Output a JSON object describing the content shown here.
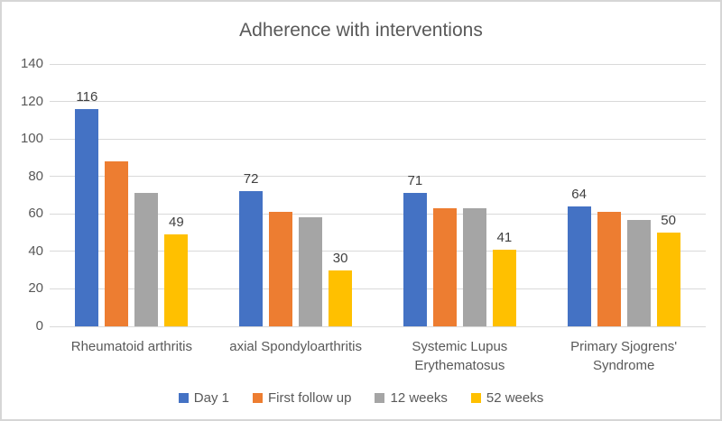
{
  "chart_data": {
    "type": "bar",
    "title": "Adherence with interventions",
    "categories": [
      "Rheumatoid arthritis",
      "axial Spondyloarthritis",
      "Systemic Lupus Erythematosus",
      "Primary Sjogrens' Syndrome"
    ],
    "series": [
      {
        "name": "Day 1",
        "color": "#4472C4",
        "values": [
          116,
          72,
          71,
          64
        ],
        "show_labels": true
      },
      {
        "name": "First follow up",
        "color": "#ED7D31",
        "values": [
          88,
          61,
          63,
          61
        ],
        "show_labels": false
      },
      {
        "name": "12 weeks",
        "color": "#A5A5A5",
        "values": [
          71,
          58,
          63,
          57
        ],
        "show_labels": false
      },
      {
        "name": "52 weeks",
        "color": "#FFC000",
        "values": [
          49,
          30,
          41,
          50
        ],
        "show_labels": true
      }
    ],
    "visible_data_labels": [
      116,
      49,
      72,
      30,
      71,
      41,
      64,
      50
    ],
    "y_axis": {
      "min": 0,
      "max": 140,
      "step": 20,
      "ticks": [
        "0",
        "20",
        "40",
        "60",
        "80",
        "100",
        "120",
        "140"
      ]
    },
    "xlabel": "",
    "ylabel": "",
    "grid": true,
    "legend_position": "bottom",
    "colors": {
      "title_text": "#595959",
      "axis_text": "#595959",
      "data_label_text": "#404040",
      "gridline": "#d9d9d9",
      "frame_border": "#d6d6d6",
      "background": "#ffffff"
    }
  }
}
